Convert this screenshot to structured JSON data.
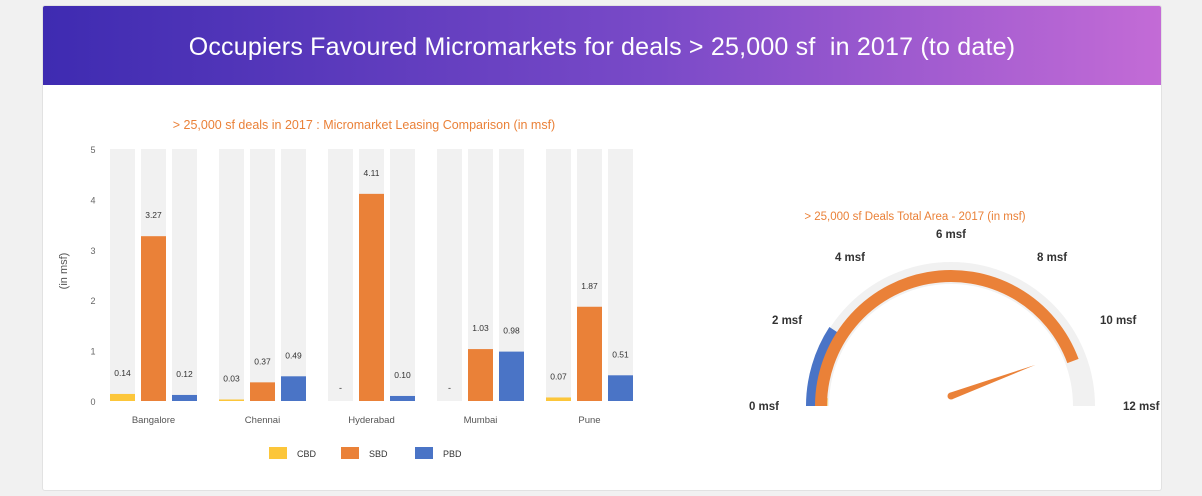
{
  "header": {
    "title": "Occupiers Favoured Micromarkets for deals > 25,000 sf  in 2017 (to date)"
  },
  "colors": {
    "CBD": "#fcc63a",
    "SBD": "#ea8138",
    "PBD": "#4a74c6",
    "track": "#f1f1f1",
    "title": "#ea8138"
  },
  "chart_data": [
    {
      "type": "bar",
      "title": "> 25,000 sf deals in 2017 : Micromarket Leasing Comparison (in msf)",
      "xlabel": "",
      "ylabel": "(in msf)",
      "ylim": [
        0,
        5
      ],
      "yticks": [
        "0",
        "1",
        "2",
        "3",
        "4",
        "5"
      ],
      "categories": [
        "Bangalore",
        "Chennai",
        "Hyderabad",
        "Mumbai",
        "Pune"
      ],
      "series": [
        {
          "name": "CBD",
          "values": [
            0.14,
            0.03,
            null,
            null,
            0.07
          ],
          "labels": [
            "0.14",
            "0.03",
            "-",
            "-",
            "0.07"
          ]
        },
        {
          "name": "SBD",
          "values": [
            3.27,
            0.37,
            4.11,
            1.03,
            1.87
          ],
          "labels": [
            "3.27",
            "0.37",
            "4.11",
            "1.03",
            "1.87"
          ]
        },
        {
          "name": "PBD",
          "values": [
            0.12,
            0.49,
            0.1,
            0.98,
            0.51
          ],
          "labels": [
            "0.12",
            "0.49",
            "0.10",
            "0.98",
            "0.51"
          ]
        }
      ],
      "legend_position": "bottom",
      "background_track": true
    },
    {
      "type": "gauge",
      "title": "> 25,000 sf Deals Total Area - 2017 (in msf)",
      "range": [
        0,
        12
      ],
      "ticks": [
        "0 msf",
        "2 msf",
        "4 msf",
        "6 msf",
        "8 msf",
        "10 msf",
        "12 msf"
      ],
      "series": [
        {
          "name": "CBD",
          "value": 0.24
        },
        {
          "name": "PBD",
          "value": 2.2
        },
        {
          "name": "SBD",
          "value": 10.65
        }
      ],
      "needle_value": 10.65
    }
  ]
}
